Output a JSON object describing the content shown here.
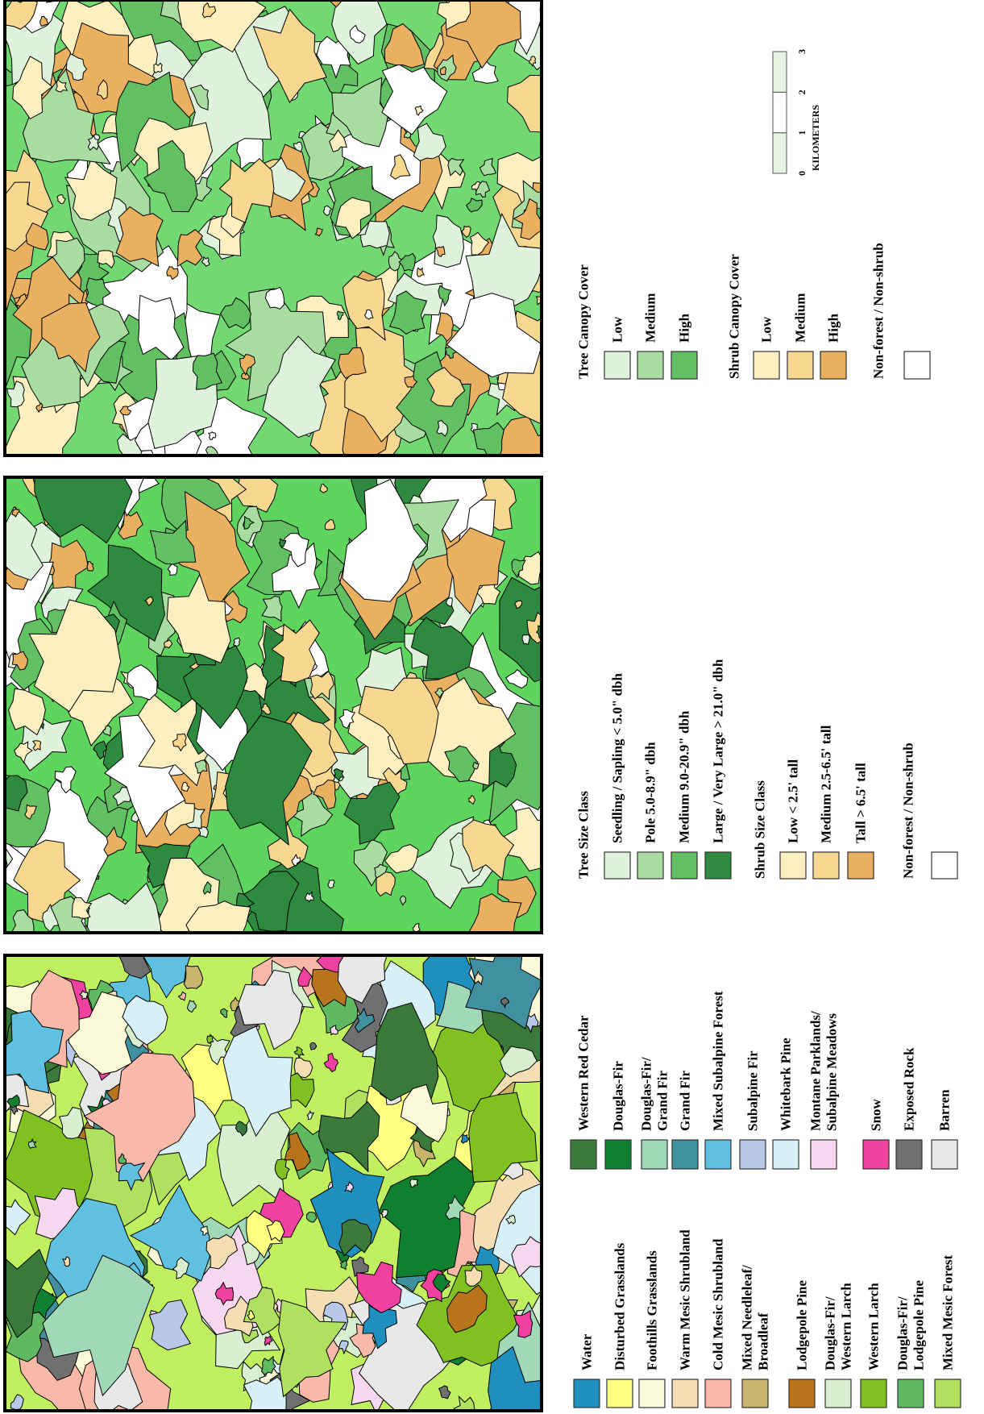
{
  "panels": [
    {
      "legend": {
        "groups": [
          {
            "title": "Tree Canopy Cover",
            "items": [
              {
                "label": "Low",
                "color": "#dff2dc"
              },
              {
                "label": "Medium",
                "color": "#a8dca0"
              },
              {
                "label": "High",
                "color": "#62bf62"
              }
            ]
          },
          {
            "title": "Shrub Canopy Cover",
            "items": [
              {
                "label": "Low",
                "color": "#fdf0c0"
              },
              {
                "label": "Medium",
                "color": "#f8d890"
              },
              {
                "label": "High",
                "color": "#e8b060"
              }
            ]
          },
          {
            "title": "Non-forest / Non-shrub",
            "items": [
              {
                "color": "#ffffff"
              }
            ]
          }
        ]
      },
      "scale_bar": {
        "ticks": [
          0,
          1,
          2,
          3
        ],
        "unit": "KILOMETERS"
      }
    },
    {
      "legend": {
        "groups": [
          {
            "title": "Tree Size Class",
            "items": [
              {
                "label": "Seedling / Sapling  < 5.0\" dbh",
                "color": "#dff2dc"
              },
              {
                "label": "Pole  5.0-8.9\" dbh",
                "color": "#a8dca0"
              },
              {
                "label": "Medium  9.0-20.9\" dbh",
                "color": "#62bf62"
              },
              {
                "label": "Large / Very Large  > 21.0\" dbh",
                "color": "#2e8a3e"
              }
            ]
          },
          {
            "title": "Shrub Size Class",
            "items": [
              {
                "label": "Low  < 2.5' tall",
                "color": "#fdf0c0"
              },
              {
                "label": "Medium  2.5-6.5' tall",
                "color": "#f8d890"
              },
              {
                "label": "Tall  > 6.5' tall",
                "color": "#e8b060"
              }
            ]
          },
          {
            "title": "Non-forest / Non-shrub",
            "items": [
              {
                "color": "#ffffff"
              }
            ]
          }
        ]
      }
    },
    {
      "legend": {
        "groups": [
          {
            "items": [
              {
                "label": "Water",
                "color": "#1f8fbf"
              },
              {
                "label": "Disturbed Grasslands",
                "color": "#ffff80"
              },
              {
                "label": "Foothills Grasslands",
                "color": "#fafad8"
              },
              {
                "label": "Warm Mesic Shrubland",
                "color": "#f5deb3"
              },
              {
                "label": "Cold Mesic Shrubland",
                "color": "#f9b9a8"
              },
              {
                "lines": [
                  "Mixed Needleleaf/",
                  "Broadleaf"
                ],
                "color": "#c8b46a"
              },
              {
                "label": "Lodgepole Pine",
                "color": "#b8741a"
              },
              {
                "lines": [
                  "Douglas-Fir/",
                  "Western Larch"
                ],
                "color": "#d8f0d0"
              },
              {
                "label": "Western Larch",
                "color": "#80c020"
              },
              {
                "lines": [
                  "Douglas-Fir/",
                  "Lodgepole Pine"
                ],
                "color": "#60b860"
              },
              {
                "label": "Mixed Mesic Forest",
                "color": "#b0e060"
              }
            ]
          },
          {
            "items": [
              {
                "label": "Western Red Cedar",
                "color": "#3a7a3a"
              },
              {
                "label": "Douglas-Fir",
                "color": "#108030"
              },
              {
                "lines": [
                  "Douglas-Fir/",
                  "Grand Fir"
                ],
                "color": "#a0d8b8"
              },
              {
                "label": "Grand Fir",
                "color": "#4090a0"
              },
              {
                "label": "Mixed Subalpine Forest",
                "color": "#60c0e0"
              },
              {
                "label": "Subalpine Fir",
                "color": "#b8c8e8"
              },
              {
                "label": "Whitebark Pine",
                "color": "#d8f0f8"
              },
              {
                "lines": [
                  "Montane Parklands/",
                  "Subalpine Meadows"
                ],
                "color": "#f8d8f0"
              },
              {
                "label": "Snow",
                "color": "#f040a0"
              },
              {
                "label": "Exposed Rock",
                "color": "#707070"
              },
              {
                "label": "Barren",
                "color": "#e8e8e8"
              }
            ]
          }
        ]
      }
    }
  ]
}
